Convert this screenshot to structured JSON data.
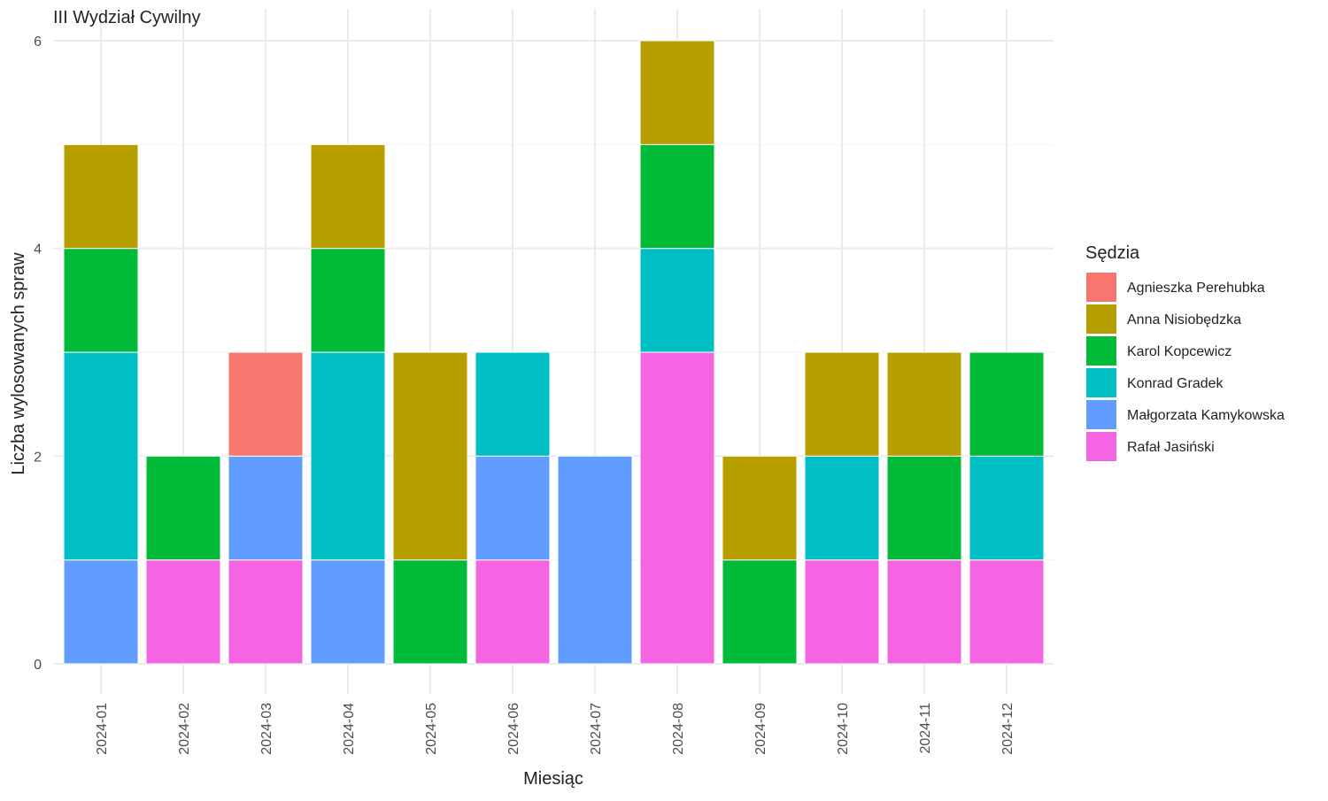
{
  "chart_data": {
    "type": "bar",
    "stacked": true,
    "title": "III Wydział Cywilny",
    "xlabel": "Miesiąc",
    "ylabel": "Liczba wylosowanych spraw",
    "ylim": [
      0,
      6
    ],
    "yticks": [
      0,
      2,
      4,
      6
    ],
    "grid": true,
    "legend_title": "Sędzia",
    "legend_position": "right",
    "categories": [
      "2024-01",
      "2024-02",
      "2024-03",
      "2024-04",
      "2024-05",
      "2024-06",
      "2024-07",
      "2024-08",
      "2024-09",
      "2024-10",
      "2024-11",
      "2024-12"
    ],
    "series": [
      {
        "name": "Agnieszka Perehubka",
        "color": "#F8766D",
        "values": [
          0,
          0,
          1,
          0,
          0,
          0,
          0,
          0,
          0,
          0,
          0,
          0
        ]
      },
      {
        "name": "Anna Nisiobędzka",
        "color": "#B79F00",
        "values": [
          1,
          0,
          0,
          1,
          2,
          0,
          0,
          1,
          1,
          1,
          1,
          0
        ]
      },
      {
        "name": "Karol Kopcewicz",
        "color": "#00BA38",
        "values": [
          1,
          1,
          0,
          1,
          1,
          0,
          0,
          1,
          1,
          0,
          1,
          1
        ]
      },
      {
        "name": "Konrad Gradek",
        "color": "#00BFC4",
        "values": [
          2,
          0,
          0,
          2,
          0,
          1,
          0,
          1,
          0,
          1,
          0,
          1
        ]
      },
      {
        "name": "Małgorzata Kamykowska",
        "color": "#619CFF",
        "values": [
          1,
          0,
          1,
          1,
          0,
          1,
          2,
          0,
          0,
          0,
          0,
          0
        ]
      },
      {
        "name": "Rafał Jasiński",
        "color": "#F564E3",
        "values": [
          0,
          1,
          1,
          0,
          0,
          1,
          0,
          3,
          0,
          1,
          1,
          1
        ]
      }
    ]
  }
}
